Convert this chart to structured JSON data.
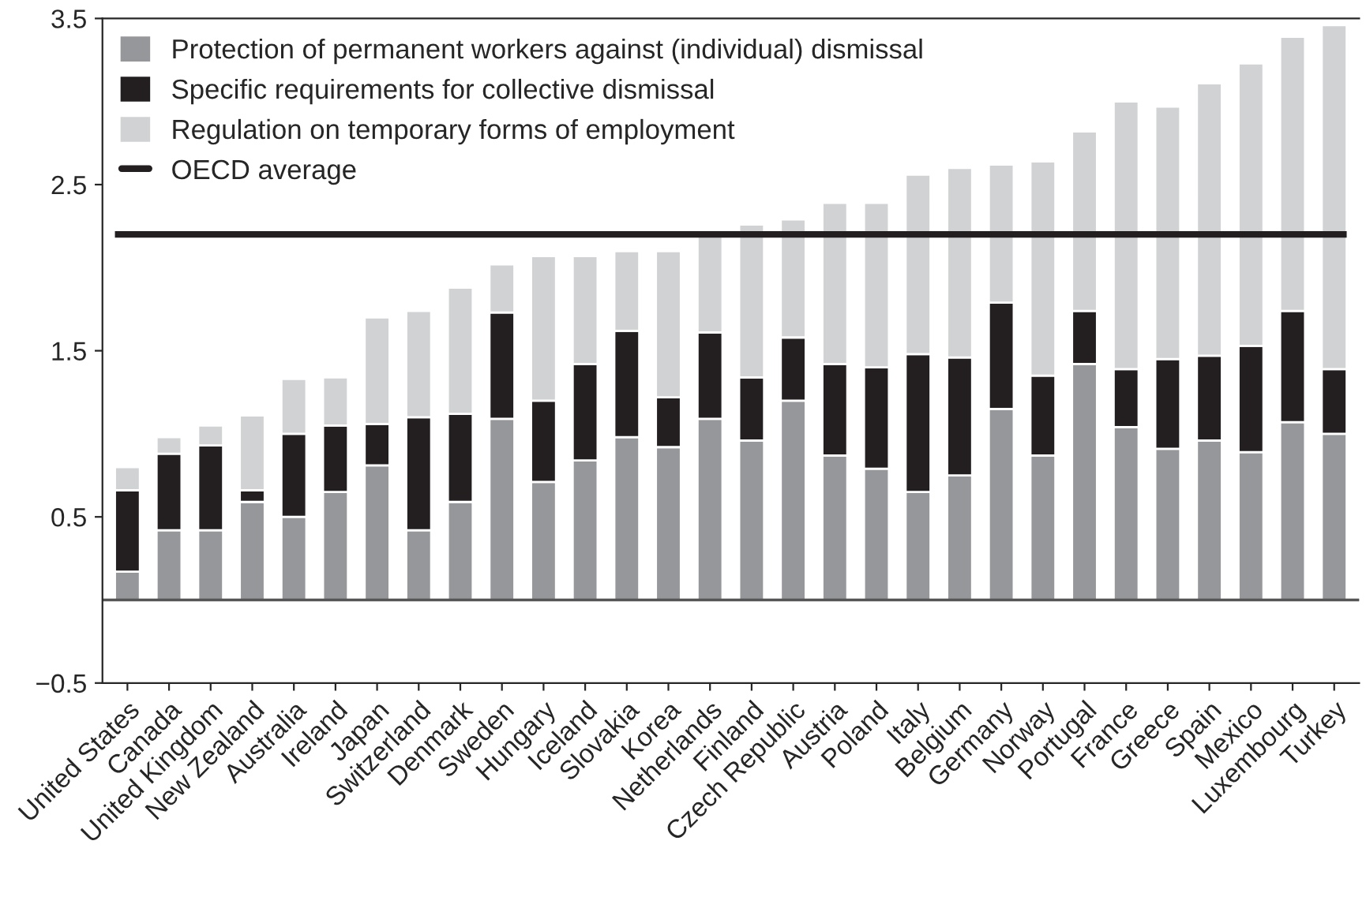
{
  "chart_data": {
    "type": "bar",
    "stacked": true,
    "categories": [
      "United States",
      "Canada",
      "United Kingdom",
      "New Zealand",
      "Australia",
      "Ireland",
      "Japan",
      "Switzerland",
      "Denmark",
      "Sweden",
      "Hungary",
      "Iceland",
      "Slovakia",
      "Korea",
      "Netherlands",
      "Finland",
      "Czech Republic",
      "Austria",
      "Poland",
      "Italy",
      "Belgium",
      "Germany",
      "Norway",
      "Portugal",
      "France",
      "Greece",
      "Spain",
      "Mexico",
      "Luxembourg",
      "Turkey"
    ],
    "series": [
      {
        "name": "Protection of permanent workers against (individual) dismissal",
        "color": "#96979b",
        "values": [
          0.17,
          0.42,
          0.42,
          0.59,
          0.5,
          0.65,
          0.81,
          0.42,
          0.59,
          1.09,
          0.71,
          0.84,
          0.98,
          0.92,
          1.09,
          0.96,
          1.2,
          0.87,
          0.79,
          0.65,
          0.75,
          1.15,
          0.87,
          1.42,
          1.04,
          0.91,
          0.96,
          0.89,
          1.07,
          1.0
        ]
      },
      {
        "name": "Specific requirements for collective dismissal",
        "color": "#231f20",
        "values": [
          0.49,
          0.46,
          0.51,
          0.07,
          0.5,
          0.4,
          0.25,
          0.68,
          0.53,
          0.64,
          0.49,
          0.58,
          0.64,
          0.3,
          0.52,
          0.38,
          0.38,
          0.55,
          0.61,
          0.83,
          0.71,
          0.64,
          0.48,
          0.32,
          0.35,
          0.54,
          0.51,
          0.64,
          0.67,
          0.39
        ]
      },
      {
        "name": "Regulation on temporary forms of employment",
        "color": "#d1d2d4",
        "values": [
          0.14,
          0.1,
          0.12,
          0.45,
          0.33,
          0.29,
          0.64,
          0.64,
          0.76,
          0.29,
          0.87,
          0.65,
          0.48,
          0.88,
          0.58,
          0.92,
          0.71,
          0.97,
          0.99,
          1.08,
          1.14,
          0.83,
          1.29,
          1.08,
          1.61,
          1.52,
          1.64,
          1.7,
          1.65,
          2.07
        ]
      }
    ],
    "ylim": [
      -0.5,
      3.5
    ],
    "yticks": [
      {
        "value": -0.5,
        "label": "−0.5"
      },
      0.5,
      1.5,
      2.5,
      3.5
    ],
    "ref_lines": [
      {
        "axis": "y",
        "value": 2.2,
        "label": "OECD average",
        "color": "#231f20"
      },
      {
        "axis": "y",
        "value": 0,
        "color": "#555555"
      }
    ],
    "legend": "top left",
    "grid": false
  }
}
